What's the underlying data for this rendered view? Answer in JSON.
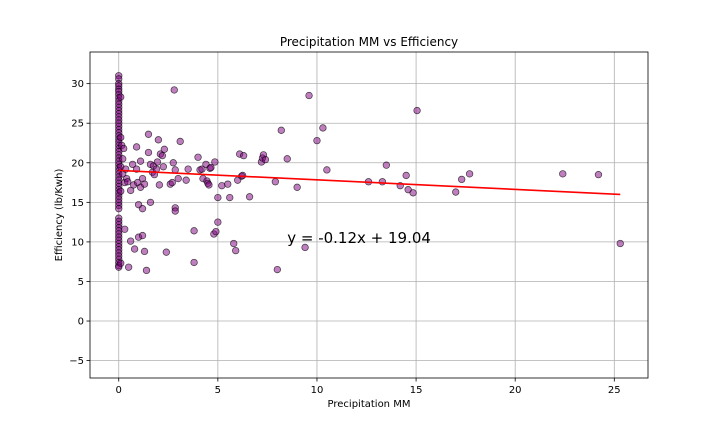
{
  "chart_data": {
    "type": "scatter",
    "title": "Precipitation MM vs Efficiency",
    "xlabel": "Precipitation MM",
    "ylabel": "Efficiency (lb/Kwh)",
    "xlim": [
      -1.45,
      26.7
    ],
    "ylim": [
      -7.2,
      34.0
    ],
    "xticks": [
      0,
      5,
      10,
      15,
      20,
      25
    ],
    "yticks": [
      -5,
      0,
      5,
      10,
      15,
      20,
      25,
      30
    ],
    "grid": true,
    "legend": "none",
    "colors": {
      "marker_fill": "#800080",
      "marker_edge": "#000000",
      "regression_line": "#ff0000",
      "grid": "#b0b0b0"
    },
    "annotation": {
      "text": "y = -0.12x + 19.04",
      "x": 8.5,
      "y": 10.5
    },
    "regression": {
      "slope": -0.12,
      "intercept": 19.04,
      "x_range": [
        0,
        25.3
      ]
    },
    "series": [
      {
        "points": [
          [
            0,
            31
          ],
          [
            0,
            30.6
          ],
          [
            0,
            30
          ],
          [
            0,
            29.7
          ],
          [
            0,
            29.3
          ],
          [
            0,
            29
          ],
          [
            0,
            28.6
          ],
          [
            0,
            28.2
          ],
          [
            0,
            27.8
          ],
          [
            0,
            27.4
          ],
          [
            0,
            27
          ],
          [
            0,
            26.6
          ],
          [
            0,
            26.2
          ],
          [
            0,
            25.8
          ],
          [
            0,
            25.4
          ],
          [
            0,
            25
          ],
          [
            0,
            24.6
          ],
          [
            0,
            24.2
          ],
          [
            0,
            23.8
          ],
          [
            0,
            23.4
          ],
          [
            0,
            23
          ],
          [
            0,
            22.6
          ],
          [
            0,
            22.2
          ],
          [
            0,
            21.8
          ],
          [
            0,
            21.4
          ],
          [
            0,
            21
          ],
          [
            0,
            20.6
          ],
          [
            0,
            20.2
          ],
          [
            0,
            19.8
          ],
          [
            0,
            19.4
          ],
          [
            0,
            19
          ],
          [
            0,
            18.6
          ],
          [
            0,
            18.2
          ],
          [
            0,
            17.8
          ],
          [
            0,
            17.4
          ],
          [
            0,
            17
          ],
          [
            0,
            16.6
          ],
          [
            0,
            16.2
          ],
          [
            0,
            15.8
          ],
          [
            0,
            15.4
          ],
          [
            0,
            15
          ],
          [
            0,
            14.6
          ],
          [
            0,
            14.2
          ],
          [
            0,
            13
          ],
          [
            0,
            12.6
          ],
          [
            0,
            12.2
          ],
          [
            0,
            11.8
          ],
          [
            0,
            11.4
          ],
          [
            0,
            11
          ],
          [
            0,
            10.6
          ],
          [
            0,
            10.2
          ],
          [
            0,
            9.8
          ],
          [
            0,
            9.4
          ],
          [
            0,
            9
          ],
          [
            0,
            8.6
          ],
          [
            0,
            8.2
          ],
          [
            0,
            7.8
          ],
          [
            0,
            7.4
          ],
          [
            0,
            7
          ],
          [
            0,
            6.8
          ],
          [
            0.1,
            28.3
          ],
          [
            0.1,
            23.2
          ],
          [
            0.1,
            19.5
          ],
          [
            0.1,
            16.4
          ],
          [
            0.1,
            7.3
          ],
          [
            0.15,
            22.2
          ],
          [
            0.2,
            20.5
          ],
          [
            0.2,
            18.6
          ],
          [
            0.25,
            21.8
          ],
          [
            0.3,
            17.5
          ],
          [
            0.3,
            11.6
          ],
          [
            0.35,
            19.2
          ],
          [
            0.4,
            18
          ],
          [
            0.45,
            17.6
          ],
          [
            0.5,
            6.8
          ],
          [
            0.6,
            10.1
          ],
          [
            0.6,
            16.5
          ],
          [
            0.7,
            19.8
          ],
          [
            0.75,
            17.2
          ],
          [
            0.8,
            9.1
          ],
          [
            0.9,
            22
          ],
          [
            0.9,
            19.2
          ],
          [
            0.95,
            17.5
          ],
          [
            1.0,
            14.7
          ],
          [
            1.0,
            10.6
          ],
          [
            1.1,
            20.2
          ],
          [
            1.1,
            16.9
          ],
          [
            1.2,
            18
          ],
          [
            1.2,
            14.2
          ],
          [
            1.2,
            10.8
          ],
          [
            1.3,
            17.3
          ],
          [
            1.3,
            8.8
          ],
          [
            1.4,
            6.4
          ],
          [
            1.5,
            23.6
          ],
          [
            1.5,
            21.3
          ],
          [
            1.6,
            15
          ],
          [
            1.6,
            19.8
          ],
          [
            1.7,
            18.8
          ],
          [
            1.75,
            19.6
          ],
          [
            1.8,
            18.5
          ],
          [
            1.9,
            19.2
          ],
          [
            1.95,
            20.1
          ],
          [
            2.0,
            22.9
          ],
          [
            2.05,
            17.2
          ],
          [
            2.1,
            21.1
          ],
          [
            2.2,
            20.9
          ],
          [
            2.25,
            19.5
          ],
          [
            2.3,
            21.7
          ],
          [
            2.4,
            8.7
          ],
          [
            2.6,
            17.3
          ],
          [
            2.7,
            17.5
          ],
          [
            2.75,
            20
          ],
          [
            2.8,
            29.2
          ],
          [
            2.85,
            19.1
          ],
          [
            2.85,
            14.3
          ],
          [
            2.85,
            13.9
          ],
          [
            3.0,
            18
          ],
          [
            3.1,
            22.7
          ],
          [
            3.4,
            17.8
          ],
          [
            3.5,
            19.2
          ],
          [
            3.8,
            11.4
          ],
          [
            3.8,
            7.4
          ],
          [
            4.0,
            20.7
          ],
          [
            4.1,
            19.1
          ],
          [
            4.2,
            19.2
          ],
          [
            4.25,
            18
          ],
          [
            4.4,
            19.8
          ],
          [
            4.45,
            17.7
          ],
          [
            4.5,
            17.4
          ],
          [
            4.55,
            17.2
          ],
          [
            4.6,
            19.3
          ],
          [
            4.65,
            19.4
          ],
          [
            4.8,
            11
          ],
          [
            4.85,
            20.1
          ],
          [
            4.9,
            11.3
          ],
          [
            5.0,
            12.5
          ],
          [
            5.0,
            15.6
          ],
          [
            5.2,
            17.1
          ],
          [
            5.5,
            17.3
          ],
          [
            5.6,
            15.6
          ],
          [
            5.8,
            9.8
          ],
          [
            5.9,
            8.9
          ],
          [
            6.0,
            17.8
          ],
          [
            6.1,
            21.1
          ],
          [
            6.2,
            18.3
          ],
          [
            6.25,
            18.4
          ],
          [
            6.3,
            20.9
          ],
          [
            6.6,
            15.7
          ],
          [
            7.2,
            20.1
          ],
          [
            7.25,
            20.6
          ],
          [
            7.3,
            21
          ],
          [
            7.4,
            20.4
          ],
          [
            7.9,
            17.6
          ],
          [
            8.0,
            6.5
          ],
          [
            8.2,
            24.1
          ],
          [
            8.5,
            20.5
          ],
          [
            9.0,
            16.9
          ],
          [
            9.4,
            9.3
          ],
          [
            9.6,
            28.5
          ],
          [
            10.0,
            22.8
          ],
          [
            10.3,
            24.4
          ],
          [
            10.5,
            19.1
          ],
          [
            12.6,
            17.6
          ],
          [
            13.3,
            17.6
          ],
          [
            13.5,
            19.7
          ],
          [
            14.2,
            17.1
          ],
          [
            14.5,
            18.4
          ],
          [
            14.6,
            16.6
          ],
          [
            14.85,
            16.2
          ],
          [
            15.05,
            26.6
          ],
          [
            17.0,
            16.3
          ],
          [
            17.3,
            17.9
          ],
          [
            17.7,
            18.6
          ],
          [
            22.4,
            18.6
          ],
          [
            24.2,
            18.5
          ],
          [
            25.3,
            9.8
          ]
        ]
      }
    ]
  }
}
